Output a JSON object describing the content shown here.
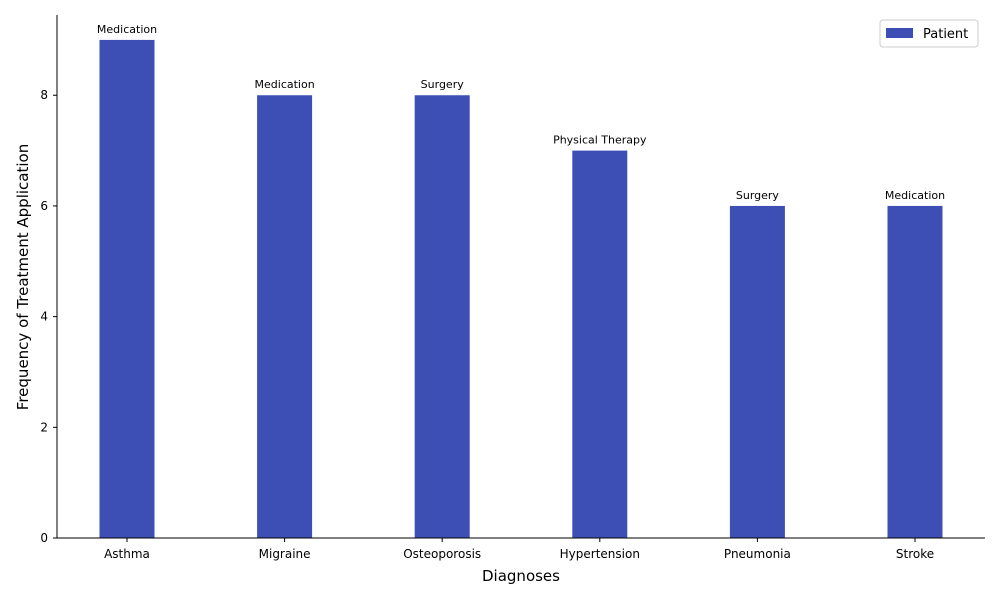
{
  "chart_data": {
    "type": "bar",
    "title": "",
    "xlabel": "Diagnoses",
    "ylabel": "Frequency of Treatment Application",
    "categories": [
      "Asthma",
      "Migraine",
      "Osteoporosis",
      "Hypertension",
      "Pneumonia",
      "Stroke"
    ],
    "series": [
      {
        "name": "Patient",
        "color": "#3d4fb5",
        "values": [
          9,
          8,
          8,
          7,
          6,
          6
        ],
        "labels": [
          "Medication",
          "Medication",
          "Surgery",
          "Physical Therapy",
          "Surgery",
          "Medication"
        ]
      }
    ],
    "ylim": [
      0,
      9.45
    ],
    "yticks": [
      0,
      2,
      4,
      6,
      8
    ],
    "grid": false,
    "legend_position": "top-right"
  }
}
